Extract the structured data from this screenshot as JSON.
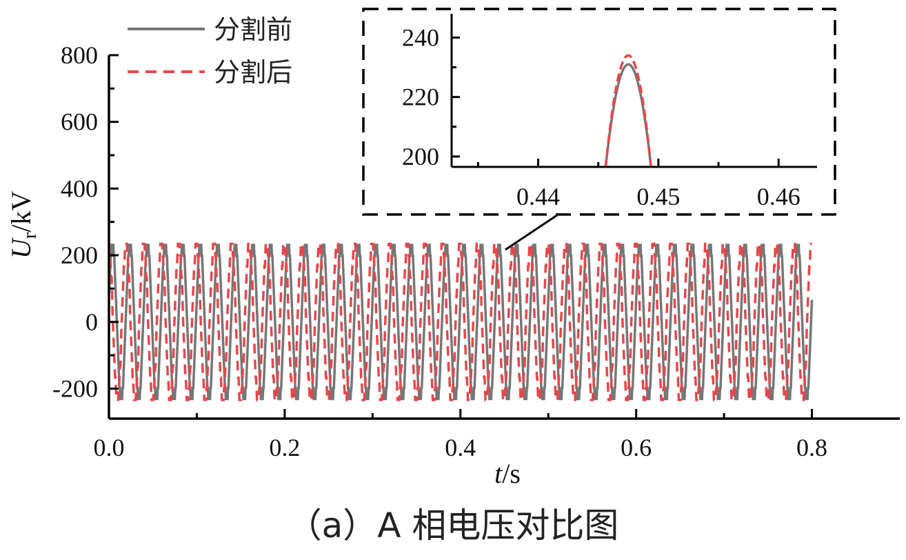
{
  "caption": "（a）A 相电压对比图",
  "chart_data": {
    "type": "line",
    "main": {
      "xlabel_var": "t",
      "xlabel_unit": "/s",
      "ylabel_var": "U",
      "ylabel_sub": "r",
      "ylabel_unit": "/kV",
      "xlim": [
        0,
        0.9
      ],
      "ylim": [
        -290,
        800
      ],
      "xticks": [
        0.0,
        0.2,
        0.4,
        0.6,
        0.8
      ],
      "xtick_labels": [
        "0.0",
        "0.2",
        "0.4",
        "0.6",
        "0.8"
      ],
      "yticks": [
        -200,
        0,
        200,
        400,
        600,
        800
      ],
      "ytick_labels": [
        "-200",
        "0",
        "200",
        "400",
        "600",
        "800"
      ],
      "waveform": {
        "frequency_hz": 50,
        "peak_kv": 232,
        "duration_s": 0.8,
        "sample_step_s": 0.001
      }
    },
    "series": [
      {
        "name": "分割前",
        "color": "#767676",
        "style": "solid",
        "peak_kv": 231
      },
      {
        "name": "分割后",
        "color": "#e8464a",
        "style": "dashed",
        "peak_kv": 234
      }
    ],
    "inset": {
      "xlim": [
        0.4328,
        0.4632
      ],
      "ylim": [
        196.5,
        248
      ],
      "xticks": [
        0.44,
        0.45,
        0.46
      ],
      "xtick_labels": [
        "0.44",
        "0.45",
        "0.46"
      ],
      "yticks": [
        200,
        220,
        240
      ],
      "ytick_labels": [
        "200",
        "220",
        "240"
      ],
      "peak_time_s": 0.4475,
      "peak_values_kv": [
        231,
        234
      ]
    },
    "grid": false,
    "legend_position": "top-left"
  }
}
